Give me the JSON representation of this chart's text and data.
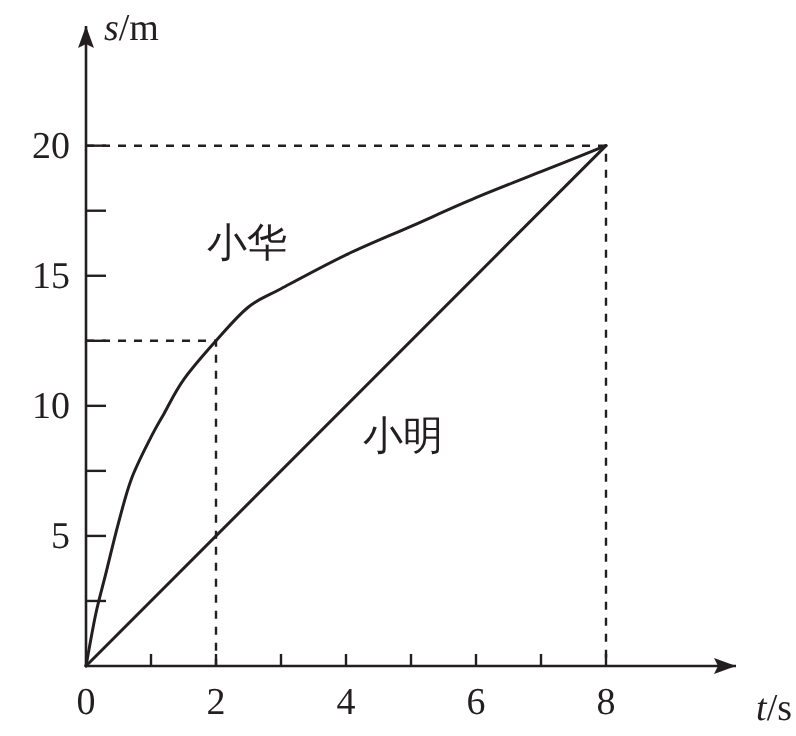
{
  "chart_data": {
    "type": "line",
    "xlabel": "t/s",
    "ylabel": "s/m",
    "xlim": [
      0,
      10
    ],
    "ylim": [
      0,
      24.6
    ],
    "grid": false,
    "legend": false,
    "marker": "none",
    "xticks": [
      0,
      {
        "value": 1,
        "label": null
      },
      2,
      {
        "value": 3,
        "label": null
      },
      4,
      {
        "value": 5,
        "label": null
      },
      6,
      {
        "value": 7,
        "label": null
      },
      8
    ],
    "yticks": [
      {
        "value": 2.5,
        "label": null
      },
      5,
      {
        "value": 7.5,
        "label": null
      },
      10,
      {
        "value": 12.5,
        "label": null
      },
      15,
      {
        "value": 17.5,
        "label": null
      },
      20
    ],
    "series": [
      {
        "name": "小华",
        "color": "#231f20",
        "x": [
          0,
          0.15,
          0.3,
          0.5,
          0.7,
          1,
          1.2,
          1.5,
          2,
          2.5,
          3,
          4,
          5,
          6,
          7,
          8
        ],
        "values": [
          0,
          2,
          3.5,
          5.5,
          7.2,
          8.8,
          9.7,
          11,
          12.5,
          13.8,
          14.5,
          15.8,
          16.9,
          18,
          19,
          20
        ]
      },
      {
        "name": "小明",
        "color": "#231f20",
        "x": [
          0,
          8
        ],
        "values": [
          0,
          20
        ]
      },
      {
        "color": "#231f20",
        "line_style": "dashed",
        "x": [
          0,
          2,
          2
        ],
        "values": [
          12.5,
          12.5,
          0
        ]
      },
      {
        "color": "#231f20",
        "line_style": "dashed",
        "x": [
          0,
          8,
          8
        ],
        "values": [
          20,
          20,
          0
        ]
      }
    ]
  }
}
